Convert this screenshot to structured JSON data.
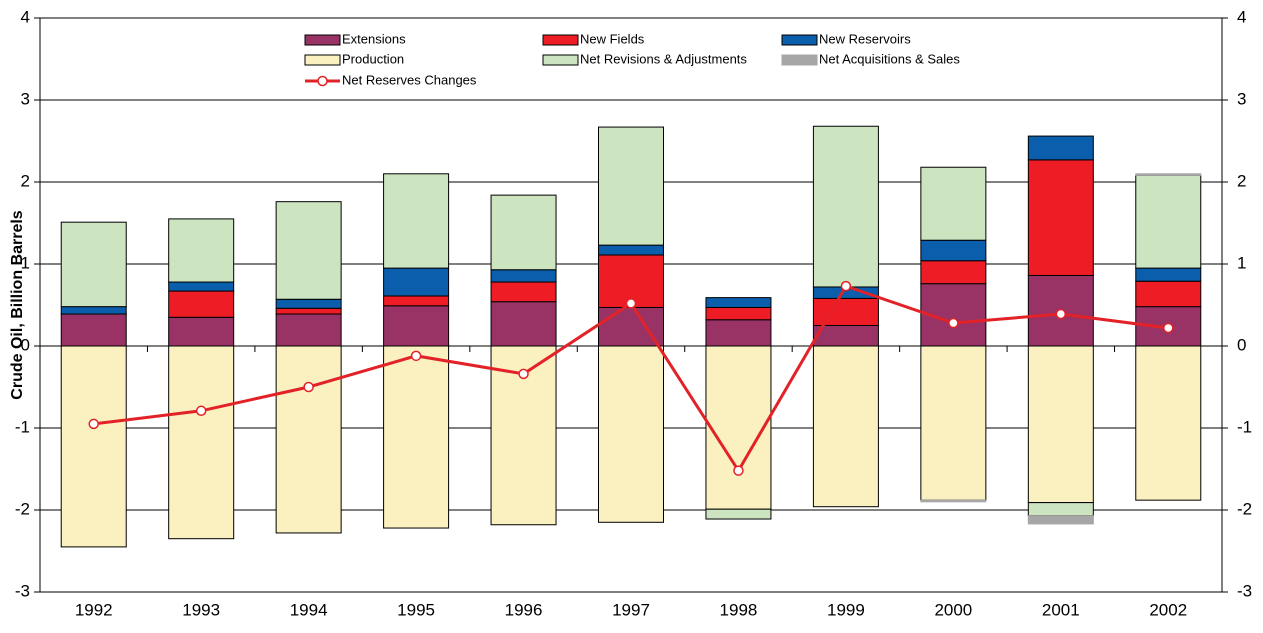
{
  "chart_data": {
    "type": "bar",
    "stacked": true,
    "y_label": "Crude Oil, Billion Barrels",
    "categories": [
      "1992",
      "1993",
      "1994",
      "1995",
      "1996",
      "1997",
      "1998",
      "1999",
      "2000",
      "2001",
      "2002"
    ],
    "series": [
      {
        "name": "Extensions",
        "color": "#993366",
        "values": [
          0.39,
          0.35,
          0.39,
          0.49,
          0.54,
          0.47,
          0.32,
          0.25,
          0.76,
          0.86,
          0.48
        ]
      },
      {
        "name": "New Fields",
        "color": "#ee1c25",
        "values": [
          0,
          0.32,
          0.07,
          0.12,
          0.24,
          0.64,
          0.15,
          0.33,
          0.28,
          1.41,
          0.31
        ]
      },
      {
        "name": "New Reservoirs",
        "color": "#0b5eab",
        "values": [
          0.09,
          0.11,
          0.11,
          0.34,
          0.15,
          0.12,
          0.12,
          0.14,
          0.25,
          0.29,
          0.16
        ]
      },
      {
        "name": "Production",
        "color": "#faf0c0",
        "values": [
          -2.45,
          -2.35,
          -2.28,
          -2.22,
          -2.18,
          -2.15,
          -1.99,
          -1.96,
          -1.88,
          -1.91,
          -1.88
        ]
      },
      {
        "name": "Net Revisions & Adjustments",
        "color": "#cce5c0",
        "values": [
          1.03,
          0.77,
          1.19,
          1.15,
          0.91,
          1.44,
          -0.12,
          1.96,
          0.89,
          -0.16,
          1.13
        ]
      },
      {
        "name": "Net Acquisitions & Sales",
        "color": "#a6a6a6",
        "values": [
          0,
          0,
          0,
          0,
          0,
          0,
          0,
          0,
          -0.02,
          -0.1,
          0.02
        ]
      },
      {
        "name": "Net Reserves Changes",
        "type": "line",
        "color": "#e32228",
        "values": [
          -0.95,
          -0.79,
          -0.5,
          -0.12,
          -0.34,
          0.52,
          -1.52,
          0.73,
          0.28,
          0.39,
          0.22
        ]
      }
    ],
    "ylim": [
      -3,
      4
    ],
    "yticks": [
      -3,
      -2,
      -1,
      0,
      1,
      2,
      3,
      4
    ],
    "y2lim": [
      -3,
      4
    ],
    "y2ticks": [
      -3,
      -2,
      -1,
      0,
      1,
      2,
      3,
      4
    ],
    "grid": true,
    "legend": "top"
  }
}
